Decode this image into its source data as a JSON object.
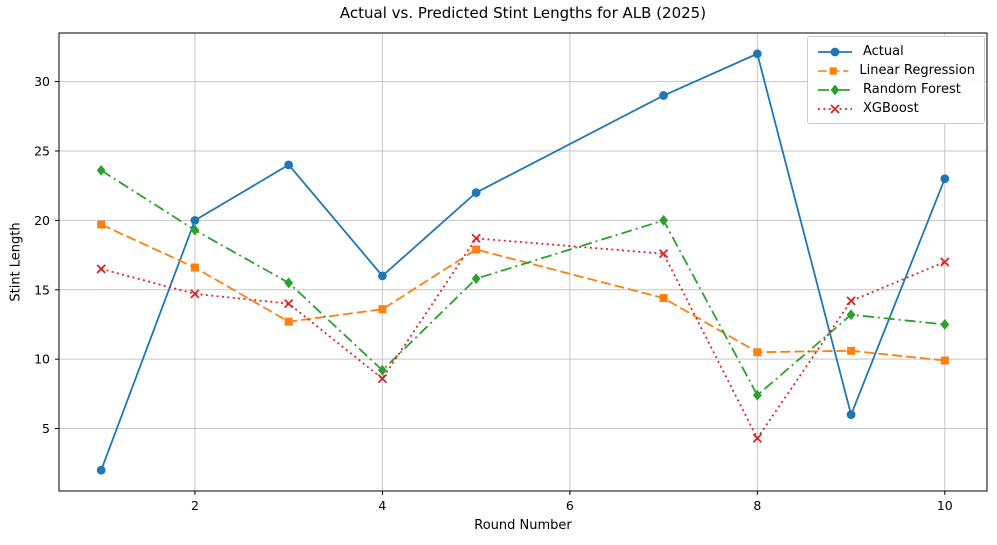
{
  "chart_data": {
    "type": "line",
    "title": "Actual vs. Predicted Stint Lengths for ALB (2025)",
    "xlabel": "Round Number",
    "ylabel": "Stint Length",
    "x": [
      1,
      2,
      3,
      4,
      5,
      7,
      8,
      9,
      10
    ],
    "x_ticks": [
      2,
      4,
      6,
      8,
      10
    ],
    "y_ticks": [
      5,
      10,
      15,
      20,
      25,
      30
    ],
    "xlim": [
      0.55,
      10.45
    ],
    "ylim": [
      0.5,
      33.5
    ],
    "grid": true,
    "legend_position": "upper right",
    "series": [
      {
        "name": "Actual",
        "color": "#1f77b4",
        "linestyle": "solid",
        "marker": "circle",
        "values": [
          2,
          20,
          24,
          16,
          22,
          29,
          32,
          6,
          23
        ]
      },
      {
        "name": "Linear Regression",
        "color": "#ff7f0e",
        "linestyle": "dashed",
        "marker": "square",
        "values": [
          19.7,
          16.6,
          12.7,
          13.6,
          17.9,
          14.4,
          10.5,
          10.6,
          9.9
        ]
      },
      {
        "name": "Random Forest",
        "color": "#2ca02c",
        "linestyle": "dashdot",
        "marker": "diamond",
        "values": [
          23.6,
          19.3,
          15.5,
          9.2,
          15.8,
          20.0,
          7.4,
          13.2,
          12.5
        ]
      },
      {
        "name": "XGBoost",
        "color": "#d62728",
        "linestyle": "dotted",
        "marker": "x",
        "values": [
          16.5,
          14.7,
          14.0,
          8.6,
          18.7,
          17.6,
          4.3,
          14.2,
          17.0
        ]
      }
    ]
  }
}
